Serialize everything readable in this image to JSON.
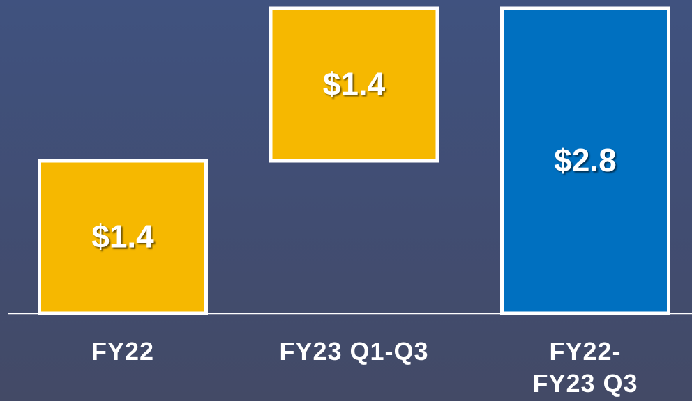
{
  "chart_data": {
    "type": "waterfall",
    "categories": [
      "FY22",
      "FY23 Q1-Q3",
      "FY22-\nFY23 Q3"
    ],
    "values": [
      1.4,
      1.4,
      2.8
    ],
    "value_labels": [
      "$1.4",
      "$1.4",
      "$2.8"
    ],
    "measures": [
      "relative",
      "relative",
      "total"
    ],
    "increase_color": "#f6b800",
    "total_color": "#0070c0"
  }
}
